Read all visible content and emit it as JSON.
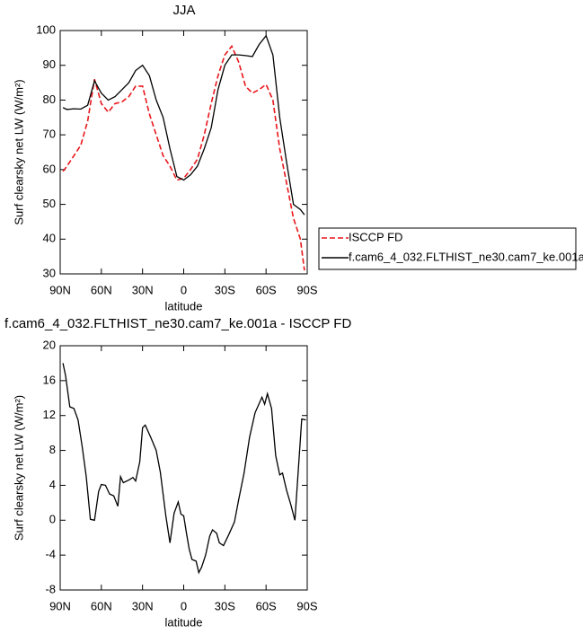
{
  "chart_data": [
    {
      "type": "line",
      "title": "JJA",
      "xlabel": "latitude",
      "ylabel": "Surf clearsky net LW (W/m²)",
      "x": [
        88,
        85,
        80,
        75,
        70,
        65,
        60,
        55,
        50,
        45,
        40,
        35,
        30,
        25,
        20,
        15,
        10,
        5,
        0,
        -5,
        -10,
        -15,
        -20,
        -25,
        -30,
        -35,
        -40,
        -45,
        -50,
        -55,
        -60,
        -65,
        -70,
        -75,
        -80,
        -85,
        -88
      ],
      "series": [
        {
          "name": "ISCCP FD",
          "color": "#e8161b",
          "linestyle": "dashed",
          "values": [
            59.5,
            61,
            64,
            67,
            74,
            86,
            79,
            76.5,
            79,
            79.5,
            81,
            84,
            84,
            76,
            70,
            64,
            61,
            57,
            57.5,
            60,
            63,
            70,
            79,
            87,
            93,
            95.5,
            91,
            84,
            82,
            83,
            84.5,
            80,
            66,
            56,
            46,
            40,
            31
          ]
        },
        {
          "name": "f.cam6_4_032.FLTHIST_ne30.cam7_ke.001a",
          "color": "#000000",
          "linestyle": "solid",
          "values": [
            77.8,
            77.3,
            77.5,
            77.4,
            78.5,
            85.5,
            82,
            80,
            81,
            83,
            85,
            88.5,
            90,
            87,
            80,
            75,
            66,
            58,
            57,
            58.5,
            61,
            66,
            72,
            83,
            90,
            93,
            93,
            92.8,
            92.5,
            96,
            98.5,
            93,
            75,
            62,
            50,
            48.5,
            47
          ]
        }
      ],
      "xlim": [
        90,
        -90
      ],
      "xticks": [
        {
          "value": 90,
          "label": "90N"
        },
        {
          "value": 60,
          "label": "60N"
        },
        {
          "value": 30,
          "label": "30N"
        },
        0,
        {
          "value": -30,
          "label": "30S"
        },
        {
          "value": -60,
          "label": "60S"
        },
        {
          "value": -90,
          "label": "90S"
        }
      ],
      "ylim": [
        30,
        100
      ],
      "yticks": [
        30,
        40,
        50,
        60,
        70,
        80,
        90,
        100
      ],
      "legend": "right"
    },
    {
      "type": "line",
      "title": "f.cam6_4_032.FLTHIST_ne30.cam7_ke.001a - ISCCP FD",
      "xlabel": "latitude",
      "ylabel": "Surf clearsky net LW (W/m²)",
      "x": [
        88,
        86,
        83,
        80,
        77,
        74,
        71,
        68,
        65,
        62,
        60,
        57,
        54,
        51,
        48,
        46,
        44,
        40,
        37,
        35,
        32,
        30,
        28,
        24,
        20,
        17,
        13,
        10,
        7,
        4,
        2,
        0,
        -2,
        -4,
        -6,
        -9,
        -11,
        -13,
        -16,
        -19,
        -21,
        -24,
        -26,
        -29,
        -33,
        -37,
        -40,
        -44,
        -48,
        -52,
        -57,
        -59,
        -61,
        -64,
        -67,
        -70,
        -72,
        -75,
        -78,
        -81,
        -86,
        -89
      ],
      "series": [
        {
          "color": "#000000",
          "linestyle": "solid",
          "values": [
            18,
            16.5,
            13,
            12.8,
            11.5,
            8.5,
            5,
            0.1,
            0,
            3.3,
            4.1,
            4,
            3,
            2.8,
            1.6,
            5,
            4.3,
            4.6,
            4.9,
            4.5,
            6.7,
            10.6,
            10.9,
            9.5,
            8,
            5.5,
            0.5,
            -2.6,
            0.8,
            2.1,
            0.7,
            0.5,
            -1.5,
            -3.3,
            -4.5,
            -4.7,
            -6,
            -5.4,
            -4,
            -1.8,
            -1.1,
            -1.5,
            -2.6,
            -2.9,
            -1.6,
            -0.2,
            2.3,
            5.4,
            9.5,
            12.3,
            14.1,
            13.3,
            14.5,
            12.8,
            7.4,
            5.2,
            5.4,
            3.4,
            1.8,
            0,
            11.6,
            11.5
          ]
        }
      ],
      "xlim": [
        90,
        -90
      ],
      "xticks": [
        {
          "value": 90,
          "label": "90N"
        },
        {
          "value": 60,
          "label": "60N"
        },
        {
          "value": 30,
          "label": "30N"
        },
        0,
        {
          "value": -30,
          "label": "30S"
        },
        {
          "value": -60,
          "label": "60S"
        },
        {
          "value": -90,
          "label": "90S"
        }
      ],
      "ylim": [
        -8,
        20
      ],
      "yticks": [
        -8,
        -4,
        0,
        4,
        8,
        12,
        16,
        20
      ]
    }
  ]
}
